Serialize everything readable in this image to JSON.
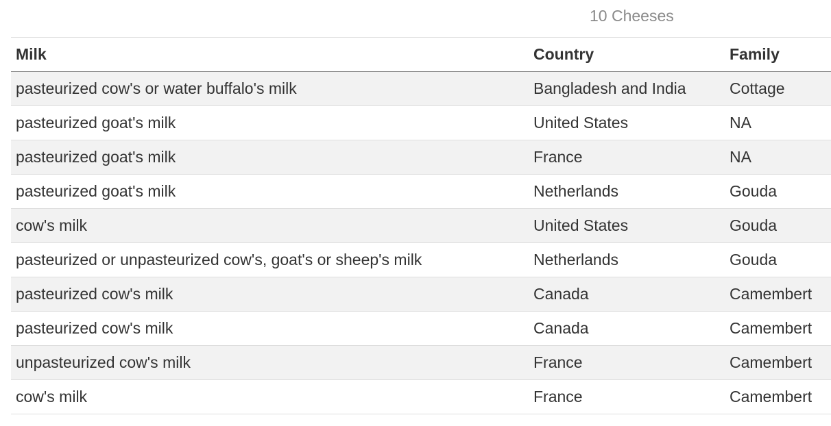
{
  "caption": "10 Cheeses",
  "columns": [
    "Milk",
    "Country",
    "Family"
  ],
  "rows": [
    [
      "pasteurized cow's or water buffalo's milk",
      "Bangladesh and India",
      "Cottage"
    ],
    [
      "pasteurized goat's milk",
      "United States",
      "NA"
    ],
    [
      "pasteurized goat's milk",
      "France",
      "NA"
    ],
    [
      "pasteurized goat's milk",
      "Netherlands",
      "Gouda"
    ],
    [
      "cow's milk",
      "United States",
      "Gouda"
    ],
    [
      "pasteurized or unpasteurized cow's, goat's or sheep's milk",
      "Netherlands",
      "Gouda"
    ],
    [
      "pasteurized cow's milk",
      "Canada",
      "Camembert"
    ],
    [
      "pasteurized cow's milk",
      "Canada",
      "Camembert"
    ],
    [
      "unpasteurized cow's milk",
      "France",
      "Camembert"
    ],
    [
      "cow's milk",
      "France",
      "Camembert"
    ]
  ]
}
